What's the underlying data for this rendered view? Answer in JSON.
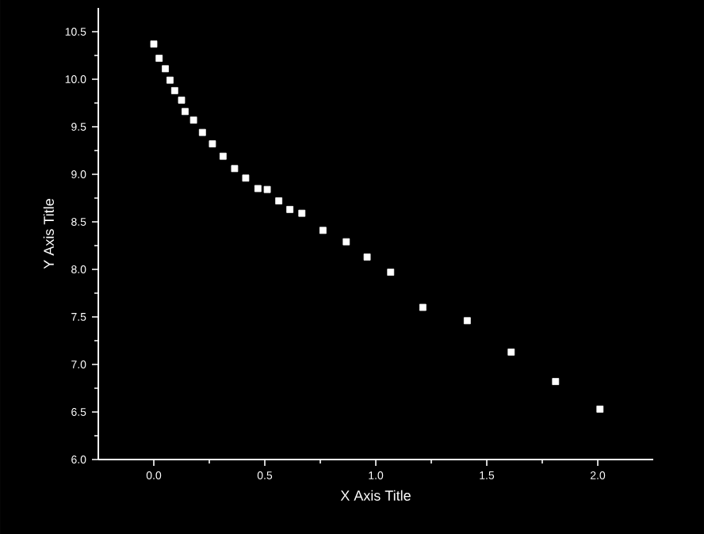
{
  "chart_data": {
    "type": "scatter",
    "xlabel": "X Axis Title",
    "ylabel": "Y Axis Title",
    "marker": "square",
    "xlim": [
      -0.25,
      2.25
    ],
    "ylim": [
      6.0,
      10.75
    ],
    "xticks": [
      {
        "value": 0,
        "label": "0.0"
      },
      0.5,
      {
        "value": 1,
        "label": "1.0"
      },
      1.5,
      {
        "value": 2,
        "label": "2.0"
      }
    ],
    "yticks": [
      {
        "value": 6,
        "label": "6.0"
      },
      6.5,
      {
        "value": 7,
        "label": "7.0"
      },
      7.5,
      {
        "value": 8,
        "label": "8.0"
      },
      8.5,
      {
        "value": 9,
        "label": "9.0"
      },
      9.5,
      {
        "value": 10,
        "label": "10.0"
      },
      10.5
    ],
    "series": [
      {
        "color": "#ffffff",
        "x": [
          0,
          0.024,
          0.052,
          0.073,
          0.094,
          0.125,
          0.141,
          0.179,
          0.219,
          0.264,
          0.312,
          0.364,
          0.414,
          0.469,
          0.511,
          0.563,
          0.613,
          0.667,
          0.762,
          0.867,
          0.961,
          1.067,
          1.212,
          1.412,
          1.61,
          1.81,
          2.01
        ],
        "values": [
          10.37,
          10.22,
          10.11,
          9.99,
          9.88,
          9.78,
          9.66,
          9.57,
          9.44,
          9.32,
          9.19,
          9.06,
          8.96,
          8.85,
          8.84,
          8.72,
          8.63,
          8.59,
          8.41,
          8.29,
          8.13,
          7.97,
          7.6,
          7.46,
          7.13,
          6.82,
          6.53
        ]
      }
    ]
  }
}
